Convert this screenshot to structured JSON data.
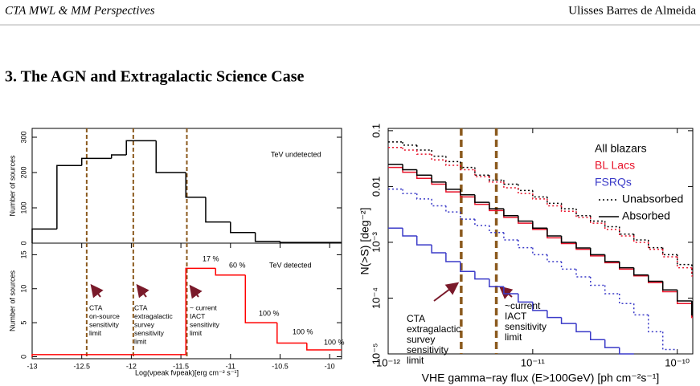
{
  "header": {
    "left": "CTA MWL & MM Perspectives",
    "right": "Ulisses Barres de Almeida"
  },
  "section": {
    "title": "3.  The AGN and Extragalactic Science Case"
  },
  "chart_data": [
    {
      "type": "histogram",
      "bins": [
        -13,
        -12.75,
        -12.5,
        -12.2,
        -12.05,
        -11.75,
        -11.45,
        -11.25,
        -11,
        -10.75,
        -10.5,
        -9.88
      ],
      "values": [
        40,
        220,
        240,
        250,
        290,
        200,
        130,
        60,
        30,
        5,
        2
      ],
      "color": "#000000",
      "xlim": [
        -13,
        -9.88
      ],
      "ylim": [
        0,
        325
      ],
      "yticks": [
        0,
        100,
        200,
        300
      ],
      "ylabel": "Number of sources",
      "annotations": [
        "TeV undetected"
      ],
      "vlines": [
        -12.45,
        -11.98,
        -11.44
      ],
      "vline_color": "#8b5a1e"
    },
    {
      "type": "histogram",
      "bins": [
        -13,
        -11.45,
        -11.15,
        -10.85,
        -10.53,
        -10.23,
        -9.88
      ],
      "values": [
        0.3,
        13,
        12,
        5,
        2,
        1
      ],
      "color": "#ff0000",
      "xlim": [
        -13,
        -9.88
      ],
      "ylim": [
        -0.3,
        16.7
      ],
      "xticks": [
        -13,
        -12.5,
        -12,
        -11.5,
        -11,
        -10.5,
        -10
      ],
      "yticks": [
        0,
        5,
        10,
        15
      ],
      "ylabel": "Number of sources",
      "xlabel": "Log(νpeak fνpeak)[erg cm⁻² s⁻¹]",
      "annotations": [
        "TeV detected",
        "17 %",
        "60 %",
        "100 %",
        "100 %",
        "100 %"
      ],
      "notes": [
        [
          "CTA",
          "on-source",
          "sensitivity",
          "limit"
        ],
        [
          "CTA",
          "extragalactic",
          "survey",
          "sensitivity",
          "limit"
        ],
        [
          "~ current",
          "IACT",
          "sensitivity",
          "limit"
        ]
      ],
      "vlines": [
        -12.45,
        -11.98,
        -11.44
      ],
      "vline_color": "#8b5a1e"
    },
    {
      "type": "step",
      "xlog": true,
      "ylog": true,
      "x": [
        1e-12,
        1.26e-12,
        1.58e-12,
        2e-12,
        2.51e-12,
        3.16e-12,
        3.98e-12,
        5.01e-12,
        6.31e-12,
        7.94e-12,
        1e-11,
        1.26e-11,
        1.58e-11,
        2e-11,
        2.51e-11,
        3.16e-11,
        3.98e-11,
        5.01e-11,
        6.31e-11,
        7.94e-11,
        1e-10,
        1.26e-10
      ],
      "series": [
        {
          "name": "All blazars",
          "style": "Unabsorbed",
          "color": "#000000",
          "values": [
            0.063,
            0.055,
            0.045,
            0.035,
            0.028,
            0.022,
            0.016,
            0.013,
            0.011,
            0.0085,
            0.0065,
            0.005,
            0.004,
            0.003,
            0.0024,
            0.0019,
            0.0014,
            0.0011,
            0.0008,
            0.0006,
            0.0004,
            0.00028
          ]
        },
        {
          "name": "BL Lacs",
          "style": "Unabsorbed",
          "color": "#e8132a",
          "values": [
            0.05,
            0.045,
            0.038,
            0.03,
            0.024,
            0.02,
            0.015,
            0.012,
            0.0095,
            0.0075,
            0.006,
            0.0045,
            0.0036,
            0.0028,
            0.0022,
            0.0017,
            0.0013,
            0.001,
            0.00075,
            0.00055,
            0.00035,
            0.00025
          ]
        },
        {
          "name": "FSRQs",
          "style": "Unabsorbed",
          "color": "#3a3ac8",
          "values": [
            0.009,
            0.0075,
            0.006,
            0.0045,
            0.0035,
            0.0026,
            0.002,
            0.0015,
            0.0011,
            0.0008,
            0.0006,
            0.00045,
            0.00033,
            0.00024,
            0.00017,
            0.00012,
            8e-05,
            5e-05,
            2.5e-05,
            1.2e-05,
            null,
            null
          ]
        },
        {
          "name": "BL Lacs",
          "style": "Absorbed",
          "color": "#e8132a",
          "values": [
            0.022,
            0.018,
            0.014,
            0.011,
            0.008,
            0.0065,
            0.0048,
            0.0037,
            0.0028,
            0.0022,
            0.0017,
            0.0012,
            0.00095,
            0.00075,
            0.00057,
            0.00043,
            0.00033,
            0.00025,
            0.00019,
            0.00013,
            8e-05,
            4.5e-05
          ]
        },
        {
          "name": "All blazars",
          "style": "Absorbed",
          "color": "#000000",
          "values": [
            0.025,
            0.02,
            0.016,
            0.012,
            0.0089,
            0.0071,
            0.0052,
            0.004,
            0.003,
            0.0024,
            0.0018,
            0.0013,
            0.001,
            0.00079,
            0.0006,
            0.00045,
            0.00035,
            0.00026,
            0.0002,
            0.00014,
            8.9e-05,
            5e-05
          ]
        },
        {
          "name": "FSRQs",
          "style": "Absorbed",
          "color": "#3a3ac8",
          "values": [
            0.0018,
            0.0013,
            0.0009,
            0.00065,
            0.00045,
            0.0003,
            0.00022,
            0.00016,
            0.00012,
            8.5e-05,
            6e-05,
            4.5e-05,
            3.5e-05,
            2.5e-05,
            1.8e-05,
            1.3e-05,
            1e-05,
            null,
            null,
            null,
            null,
            null
          ]
        }
      ],
      "xlim": [
        1e-12,
        1.28e-10
      ],
      "ylim": [
        1e-05,
        0.11
      ],
      "xticks": [
        {
          "value": 1e-12,
          "label": "10⁻¹²"
        },
        {
          "value": 1e-11,
          "label": "10⁻¹¹"
        },
        {
          "value": 1e-10,
          "label": "10⁻¹⁰"
        }
      ],
      "yticks": [
        {
          "value": 1e-05,
          "label": "10⁻⁵"
        },
        {
          "value": 0.0001,
          "label": "10⁻⁴"
        },
        {
          "value": 0.001,
          "label": "10⁻³"
        },
        0.01,
        0.1
      ],
      "xlabel": "VHE gamma−ray flux (E>100GeV) [ph cm⁻²s⁻¹]",
      "ylabel": "N(>S) [deg⁻²]",
      "legend": {
        "colors": [
          {
            "name": "All blazars",
            "color": "#000000"
          },
          {
            "name": "BL Lacs",
            "color": "#e8132a"
          },
          {
            "name": "FSRQs",
            "color": "#3a3ac8"
          }
        ],
        "styles": [
          {
            "name": "Unabsorbed",
            "dash": "dotted"
          },
          {
            "name": "Absorbed",
            "dash": "solid"
          }
        ]
      },
      "notes": [
        [
          "CTA",
          "extragalactic",
          "survey",
          "sensitivity",
          "limit"
        ],
        [
          "~current",
          "IACT",
          "sensitivity",
          "limit"
        ]
      ],
      "vlines": [
        3.2e-12,
        5.6e-12
      ],
      "vline_color": "#8b5a1e"
    }
  ]
}
